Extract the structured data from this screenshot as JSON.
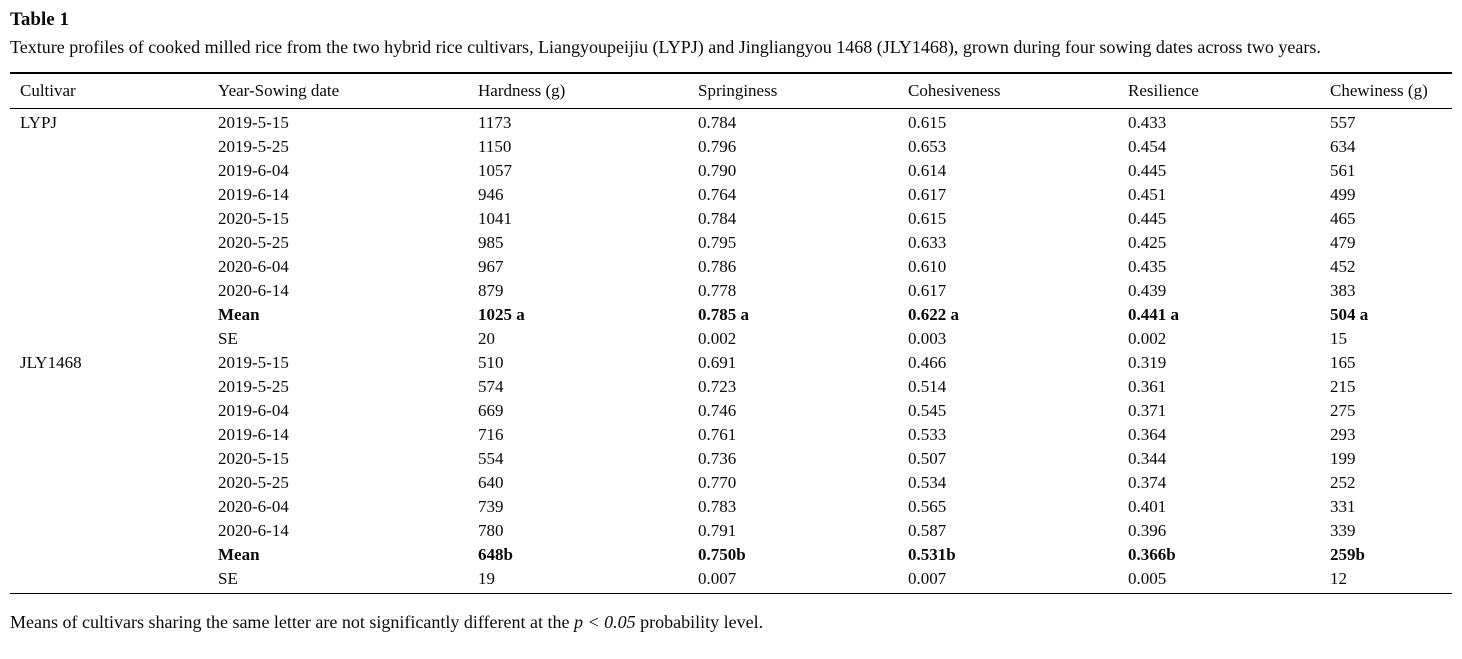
{
  "table": {
    "label": "Table 1",
    "caption": "Texture profiles of cooked milled rice from the two hybrid rice cultivars, Liangyoupeijiu (LYPJ) and Jingliangyou 1468 (JLY1468), grown during four sowing dates across two years.",
    "columns": [
      "Cultivar",
      "Year-Sowing date",
      "Hardness (g)",
      "Springiness",
      "Cohesiveness",
      "Resilience",
      "Chewiness (g)"
    ],
    "rows": [
      {
        "cultivar": "LYPJ",
        "date": "2019-5-15",
        "hardness": "1173",
        "springiness": "0.784",
        "cohesiveness": "0.615",
        "resilience": "0.433",
        "chewiness": "557",
        "bold": false
      },
      {
        "cultivar": "",
        "date": "2019-5-25",
        "hardness": "1150",
        "springiness": "0.796",
        "cohesiveness": "0.653",
        "resilience": "0.454",
        "chewiness": "634",
        "bold": false
      },
      {
        "cultivar": "",
        "date": "2019-6-04",
        "hardness": "1057",
        "springiness": "0.790",
        "cohesiveness": "0.614",
        "resilience": "0.445",
        "chewiness": "561",
        "bold": false
      },
      {
        "cultivar": "",
        "date": "2019-6-14",
        "hardness": "946",
        "springiness": "0.764",
        "cohesiveness": "0.617",
        "resilience": "0.451",
        "chewiness": "499",
        "bold": false
      },
      {
        "cultivar": "",
        "date": "2020-5-15",
        "hardness": "1041",
        "springiness": "0.784",
        "cohesiveness": "0.615",
        "resilience": "0.445",
        "chewiness": "465",
        "bold": false
      },
      {
        "cultivar": "",
        "date": "2020-5-25",
        "hardness": "985",
        "springiness": "0.795",
        "cohesiveness": "0.633",
        "resilience": "0.425",
        "chewiness": "479",
        "bold": false
      },
      {
        "cultivar": "",
        "date": "2020-6-04",
        "hardness": "967",
        "springiness": "0.786",
        "cohesiveness": "0.610",
        "resilience": "0.435",
        "chewiness": "452",
        "bold": false
      },
      {
        "cultivar": "",
        "date": "2020-6-14",
        "hardness": "879",
        "springiness": "0.778",
        "cohesiveness": "0.617",
        "resilience": "0.439",
        "chewiness": "383",
        "bold": false
      },
      {
        "cultivar": "",
        "date": "Mean",
        "hardness": "1025 a",
        "springiness": "0.785 a",
        "cohesiveness": "0.622 a",
        "resilience": "0.441 a",
        "chewiness": "504 a",
        "bold": true
      },
      {
        "cultivar": "",
        "date": "SE",
        "hardness": "20",
        "springiness": "0.002",
        "cohesiveness": "0.003",
        "resilience": "0.002",
        "chewiness": "15",
        "bold": false
      },
      {
        "cultivar": "JLY1468",
        "date": "2019-5-15",
        "hardness": "510",
        "springiness": "0.691",
        "cohesiveness": "0.466",
        "resilience": "0.319",
        "chewiness": "165",
        "bold": false
      },
      {
        "cultivar": "",
        "date": "2019-5-25",
        "hardness": "574",
        "springiness": "0.723",
        "cohesiveness": "0.514",
        "resilience": "0.361",
        "chewiness": "215",
        "bold": false
      },
      {
        "cultivar": "",
        "date": "2019-6-04",
        "hardness": "669",
        "springiness": "0.746",
        "cohesiveness": "0.545",
        "resilience": "0.371",
        "chewiness": "275",
        "bold": false
      },
      {
        "cultivar": "",
        "date": "2019-6-14",
        "hardness": "716",
        "springiness": "0.761",
        "cohesiveness": "0.533",
        "resilience": "0.364",
        "chewiness": "293",
        "bold": false
      },
      {
        "cultivar": "",
        "date": "2020-5-15",
        "hardness": "554",
        "springiness": "0.736",
        "cohesiveness": "0.507",
        "resilience": "0.344",
        "chewiness": "199",
        "bold": false
      },
      {
        "cultivar": "",
        "date": "2020-5-25",
        "hardness": "640",
        "springiness": "0.770",
        "cohesiveness": "0.534",
        "resilience": "0.374",
        "chewiness": "252",
        "bold": false
      },
      {
        "cultivar": "",
        "date": "2020-6-04",
        "hardness": "739",
        "springiness": "0.783",
        "cohesiveness": "0.565",
        "resilience": "0.401",
        "chewiness": "331",
        "bold": false
      },
      {
        "cultivar": "",
        "date": "2020-6-14",
        "hardness": "780",
        "springiness": "0.791",
        "cohesiveness": "0.587",
        "resilience": "0.396",
        "chewiness": "339",
        "bold": false
      },
      {
        "cultivar": "",
        "date": "Mean",
        "hardness": "648b",
        "springiness": "0.750b",
        "cohesiveness": "0.531b",
        "resilience": "0.366b",
        "chewiness": "259b",
        "bold": true
      },
      {
        "cultivar": "",
        "date": "SE",
        "hardness": "19",
        "springiness": "0.007",
        "cohesiveness": "0.007",
        "resilience": "0.005",
        "chewiness": "12",
        "bold": false
      }
    ],
    "footnote_prefix": "Means of cultivars sharing the same letter are not significantly different at the ",
    "footnote_italic": "p < 0.05",
    "footnote_suffix": " probability level."
  }
}
